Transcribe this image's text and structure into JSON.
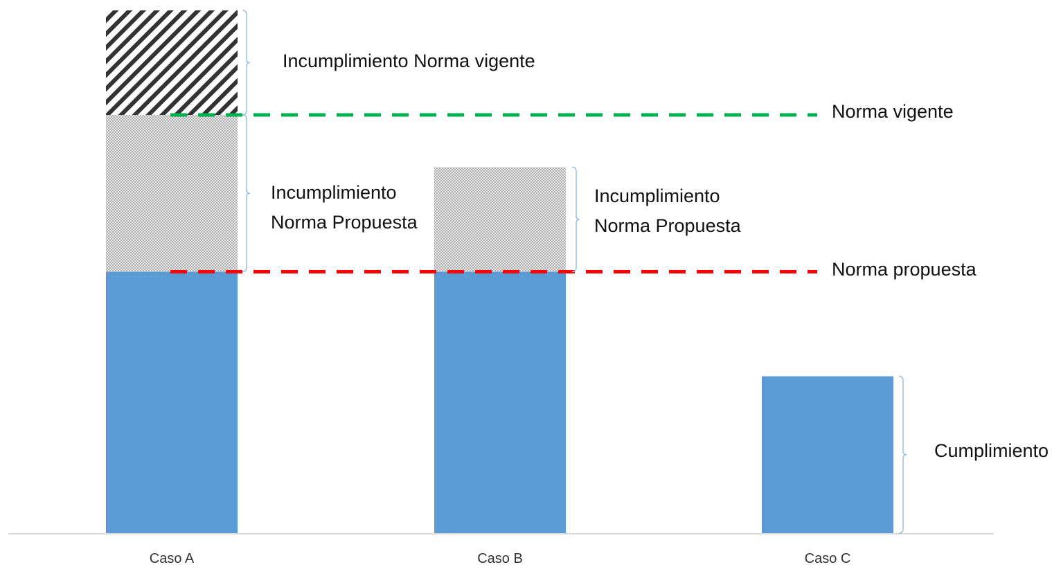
{
  "chart_data": {
    "type": "bar",
    "categories": [
      "Caso A",
      "Caso B",
      "Caso C"
    ],
    "ylim": [
      0,
      100
    ],
    "series": [
      {
        "key": "cumplimiento",
        "values": [
          50,
          50,
          30
        ],
        "color": "#5B9BD5",
        "pattern": "solid"
      },
      {
        "key": "incumplimiento_propuesta",
        "values": [
          30,
          20,
          0
        ],
        "color": "#bfbfbf",
        "pattern": "dots"
      },
      {
        "key": "incumplimiento_vigente",
        "values": [
          20,
          0,
          0
        ],
        "color": "#333333",
        "pattern": "diagonal"
      }
    ],
    "reference_lines": [
      {
        "key": "norma_vigente",
        "label": "Norma vigente",
        "value": 80,
        "color": "#00B050",
        "style": "dashed"
      },
      {
        "key": "norma_propuesta",
        "label": "Norma propuesta",
        "value": 50,
        "color": "#FF0000",
        "style": "dashed"
      }
    ],
    "annotations": {
      "incumplimiento_vigente_a": "Incumplimiento Norma vigente",
      "incumplimiento_propuesta_a": [
        "Incumplimiento",
        "Norma Propuesta"
      ],
      "incumplimiento_propuesta_b": [
        "Incumplimiento",
        "Norma Propuesta"
      ],
      "cumplimiento_c": "Cumplimiento"
    },
    "title": "",
    "xlabel": "",
    "ylabel": "",
    "grid": false,
    "legend": "none"
  },
  "colors": {
    "bracket": "#9DC3E6",
    "axis": "#d9d9d9"
  }
}
